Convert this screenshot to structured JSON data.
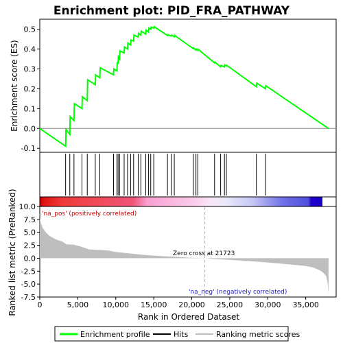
{
  "chart_data": [
    {
      "type": "line",
      "title": "Enrichment plot: PID_FRA_PATHWAY",
      "ylabel": "Enrichment score (ES)",
      "ylim": [
        -0.12,
        0.55
      ],
      "yticks": [
        -0.1,
        0.0,
        0.1,
        0.2,
        0.3,
        0.4,
        0.5
      ],
      "ytick_labels": [
        "-0.1",
        "0.0",
        "0.1",
        "0.2",
        "0.3",
        "0.4",
        "0.5"
      ],
      "xlim": [
        0,
        39000
      ],
      "grid": false,
      "color": "#00ff00",
      "series": [
        {
          "name": "Enrichment profile",
          "x": [
            0,
            3400,
            3450,
            3950,
            4000,
            4500,
            4550,
            5550,
            5600,
            6250,
            6300,
            7300,
            7350,
            7900,
            7950,
            9700,
            9750,
            10150,
            10200,
            10300,
            10350,
            10500,
            10550,
            11100,
            11150,
            11550,
            11600,
            11950,
            12000,
            12350,
            12400,
            12950,
            13000,
            13300,
            13350,
            13950,
            14000,
            14300,
            14350,
            14600,
            14650,
            15000,
            15050,
            16800,
            16850,
            17300,
            17350,
            17700,
            17750,
            20200,
            20250,
            20550,
            20600,
            20800,
            20850,
            23000,
            23050,
            23800,
            23850,
            24300,
            24350,
            24550,
            24600,
            28500,
            28550,
            29700,
            29750,
            38000
          ],
          "y": [
            0.0,
            -0.09,
            -0.005,
            -0.03,
            0.06,
            0.04,
            0.125,
            0.1,
            0.16,
            0.14,
            0.245,
            0.22,
            0.27,
            0.255,
            0.305,
            0.27,
            0.3,
            0.29,
            0.335,
            0.325,
            0.36,
            0.35,
            0.39,
            0.38,
            0.41,
            0.4,
            0.43,
            0.42,
            0.445,
            0.44,
            0.47,
            0.46,
            0.48,
            0.47,
            0.49,
            0.475,
            0.495,
            0.485,
            0.505,
            0.5,
            0.51,
            0.505,
            0.512,
            0.468,
            0.472,
            0.465,
            0.47,
            0.462,
            0.468,
            0.402,
            0.405,
            0.395,
            0.4,
            0.393,
            0.398,
            0.33,
            0.334,
            0.31,
            0.318,
            0.31,
            0.32,
            0.315,
            0.318,
            0.21,
            0.228,
            0.2,
            0.215,
            0.0
          ]
        }
      ]
    },
    {
      "type": "scatter",
      "name": "Hits",
      "xlim": [
        0,
        39000
      ],
      "hits_x": [
        3400,
        3950,
        4500,
        5550,
        6250,
        7300,
        7900,
        9700,
        10150,
        10300,
        10500,
        11100,
        11550,
        11950,
        12350,
        12950,
        13300,
        13950,
        14300,
        14600,
        15000,
        16800,
        17300,
        17700,
        20200,
        20550,
        20800,
        23000,
        23800,
        24300,
        24550,
        28500,
        29700
      ]
    },
    {
      "type": "area",
      "ylabel": "Ranked list metric (PreRanked)",
      "xlabel": "Rank in Ordered Dataset",
      "ylim": [
        -7.5,
        10.0
      ],
      "yticks": [
        -7.5,
        -5.0,
        -2.5,
        0.0,
        2.5,
        5.0,
        7.5,
        10.0
      ],
      "ytick_labels": [
        "-7.5",
        "-5.0",
        "-2.5",
        "0.0",
        "2.5",
        "5.0",
        "7.5",
        "10.0"
      ],
      "xlim": [
        0,
        39000
      ],
      "xticks": [
        0,
        5000,
        10000,
        15000,
        20000,
        25000,
        30000,
        35000
      ],
      "xtick_labels": [
        "0",
        "5,000",
        "10,000",
        "15,000",
        "20,000",
        "25,000",
        "30,000",
        "35,000"
      ],
      "fill_color": "#bebebe",
      "x": [
        0,
        150,
        400,
        800,
        1300,
        2000,
        3000,
        3500,
        4500,
        5500,
        6500,
        8000,
        9000,
        10000,
        12000,
        14000,
        16000,
        18000,
        20000,
        21723,
        23000,
        25000,
        27000,
        29000,
        31000,
        33000,
        35000,
        36000,
        36800,
        37300,
        37700,
        37900,
        38000
      ],
      "values": [
        7.8,
        6.8,
        5.8,
        5.0,
        4.3,
        3.7,
        3.2,
        2.7,
        2.6,
        2.2,
        1.7,
        1.6,
        1.5,
        1.2,
        0.9,
        0.6,
        0.4,
        0.25,
        0.1,
        0.0,
        -0.15,
        -0.3,
        -0.5,
        -0.7,
        -0.95,
        -1.2,
        -1.5,
        -1.8,
        -2.3,
        -2.8,
        -3.5,
        -5.0,
        -6.8
      ],
      "annotations": {
        "pos_label": "'na_pos' (positively correlated)",
        "neg_label": "'na_neg' (negatively correlated)",
        "zero_cross": "Zero cross at 21723",
        "zero_cross_x": 21723
      }
    }
  ],
  "legend": {
    "items": [
      {
        "label": "Enrichment profile",
        "color": "#00ff00"
      },
      {
        "label": "Hits",
        "color": "#000000"
      },
      {
        "label": "Ranking metric scores",
        "color": "#bebebe"
      }
    ]
  }
}
